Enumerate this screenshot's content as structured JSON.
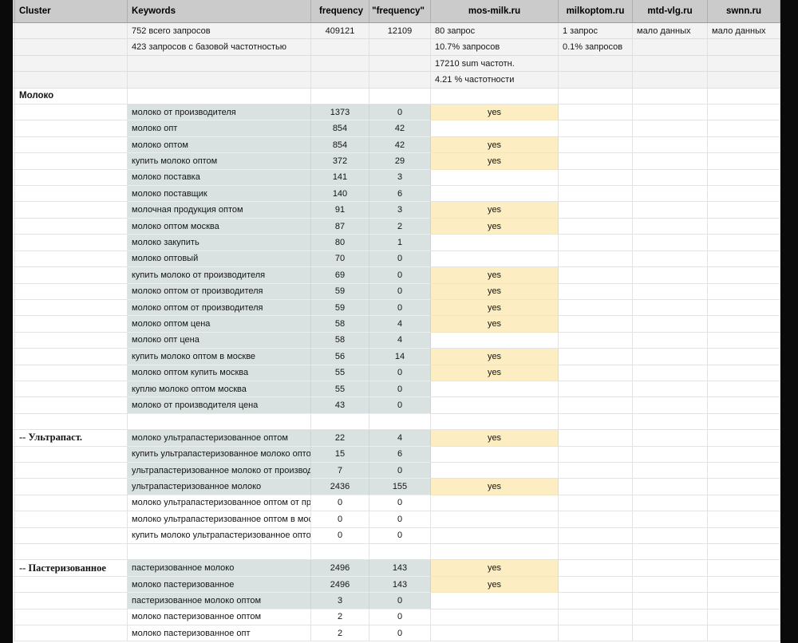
{
  "table": {
    "yes_label": "yes",
    "columns": [
      {
        "key": "cluster",
        "label": "Cluster"
      },
      {
        "key": "keywords",
        "label": "Keywords"
      },
      {
        "key": "frequency",
        "label": "frequency"
      },
      {
        "key": "frequency_quoted",
        "label": "\"frequency\""
      },
      {
        "key": "mos_milk",
        "label": "mos-milk.ru"
      },
      {
        "key": "milkoptom",
        "label": "milkoptom.ru"
      },
      {
        "key": "mtd_vlg",
        "label": "mtd-vlg.ru"
      },
      {
        "key": "swnn",
        "label": "swnn.ru"
      }
    ],
    "rows": [
      {
        "summary": true,
        "kw": "752 всего запросов",
        "f": "409121",
        "fq": "12109",
        "mos": "80 запрос",
        "milk": "1 запрос",
        "mtd": "мало данных",
        "swnn": "мало данных"
      },
      {
        "summary": true,
        "kw": "423 запросов с базовой частотностью",
        "mos": "10.7% запросов",
        "milk": "0.1% запросов"
      },
      {
        "summary": true,
        "mos": "17210 sum частотн."
      },
      {
        "summary": true,
        "mos": "4.21 % частотности"
      },
      {
        "cluster": "Молоко"
      },
      {
        "kw": "молоко от производителя",
        "f": "1373",
        "fq": "0",
        "yes": true,
        "shaded": true
      },
      {
        "kw": "молоко опт",
        "f": "854",
        "fq": "42",
        "shaded": true
      },
      {
        "kw": "молоко оптом",
        "f": "854",
        "fq": "42",
        "yes": true,
        "shaded": true
      },
      {
        "kw": "купить молоко оптом",
        "f": "372",
        "fq": "29",
        "yes": true,
        "shaded": true
      },
      {
        "kw": "молоко поставка",
        "f": "141",
        "fq": "3",
        "shaded": true
      },
      {
        "kw": "молоко поставщик",
        "f": "140",
        "fq": "6",
        "shaded": true
      },
      {
        "kw": "молочная продукция оптом",
        "f": "91",
        "fq": "3",
        "yes": true,
        "shaded": true
      },
      {
        "kw": "молоко оптом москва",
        "f": "87",
        "fq": "2",
        "yes": true,
        "shaded": true
      },
      {
        "kw": "молоко закупить",
        "f": "80",
        "fq": "1",
        "shaded": true
      },
      {
        "kw": "молоко оптовый",
        "f": "70",
        "fq": "0",
        "shaded": true
      },
      {
        "kw": "купить молоко от производителя",
        "f": "69",
        "fq": "0",
        "yes": true,
        "shaded": true
      },
      {
        "kw": "молоко оптом от производителя",
        "f": "59",
        "fq": "0",
        "yes": true,
        "shaded": true
      },
      {
        "kw": "молоко оптом от производителя",
        "f": "59",
        "fq": "0",
        "yes": true,
        "shaded": true
      },
      {
        "kw": "молоко оптом цена",
        "f": "58",
        "fq": "4",
        "yes": true,
        "shaded": true
      },
      {
        "kw": "молоко опт цена",
        "f": "58",
        "fq": "4",
        "shaded": true
      },
      {
        "kw": "купить молоко оптом в москве",
        "f": "56",
        "fq": "14",
        "yes": true,
        "shaded": true
      },
      {
        "kw": "молоко оптом купить москва",
        "f": "55",
        "fq": "0",
        "yes": true,
        "shaded": true
      },
      {
        "kw": "куплю молоко оптом москва",
        "f": "55",
        "fq": "0",
        "shaded": true
      },
      {
        "kw": "молоко от производителя цена",
        "f": "43",
        "fq": "0",
        "shaded": true
      },
      {},
      {
        "cluster": "-- Ультрапаст.",
        "clusterSerif": true,
        "kw": "молоко ультрапастеризованное оптом",
        "f": "22",
        "fq": "4",
        "yes": true,
        "shaded": true
      },
      {
        "kw": "купить ультрапастеризованное молоко оптом",
        "f": "15",
        "fq": "6",
        "shaded": true
      },
      {
        "kw": "ультрапастеризованное молоко от производителя",
        "f": "7",
        "fq": "0",
        "shaded": true
      },
      {
        "kw": "ультрапастеризованное молоко",
        "f": "2436",
        "fq": "155",
        "yes": true,
        "shaded": true
      },
      {
        "kw": "молоко ультрапастеризованное оптом от производителя",
        "f": "0",
        "fq": "0"
      },
      {
        "kw": "молоко ультрапастеризованное оптом в москве",
        "f": "0",
        "fq": "0"
      },
      {
        "kw": "купить молоко ультрапастеризованное оптом",
        "f": "0",
        "fq": "0"
      },
      {},
      {
        "cluster": "-- Пастеризованное",
        "clusterSerif": true,
        "kw": "пастеризованное молоко",
        "f": "2496",
        "fq": "143",
        "yes": true,
        "shaded": true
      },
      {
        "kw": "молоко пастеризованное",
        "f": "2496",
        "fq": "143",
        "yes": true,
        "shaded": true
      },
      {
        "kw": "пастеризованное молоко оптом",
        "f": "3",
        "fq": "0",
        "shaded": true
      },
      {
        "kw": "молоко пастеризованное оптом",
        "f": "2",
        "fq": "0"
      },
      {
        "kw": "молоко пастеризованное опт",
        "f": "2",
        "fq": "0"
      }
    ]
  }
}
